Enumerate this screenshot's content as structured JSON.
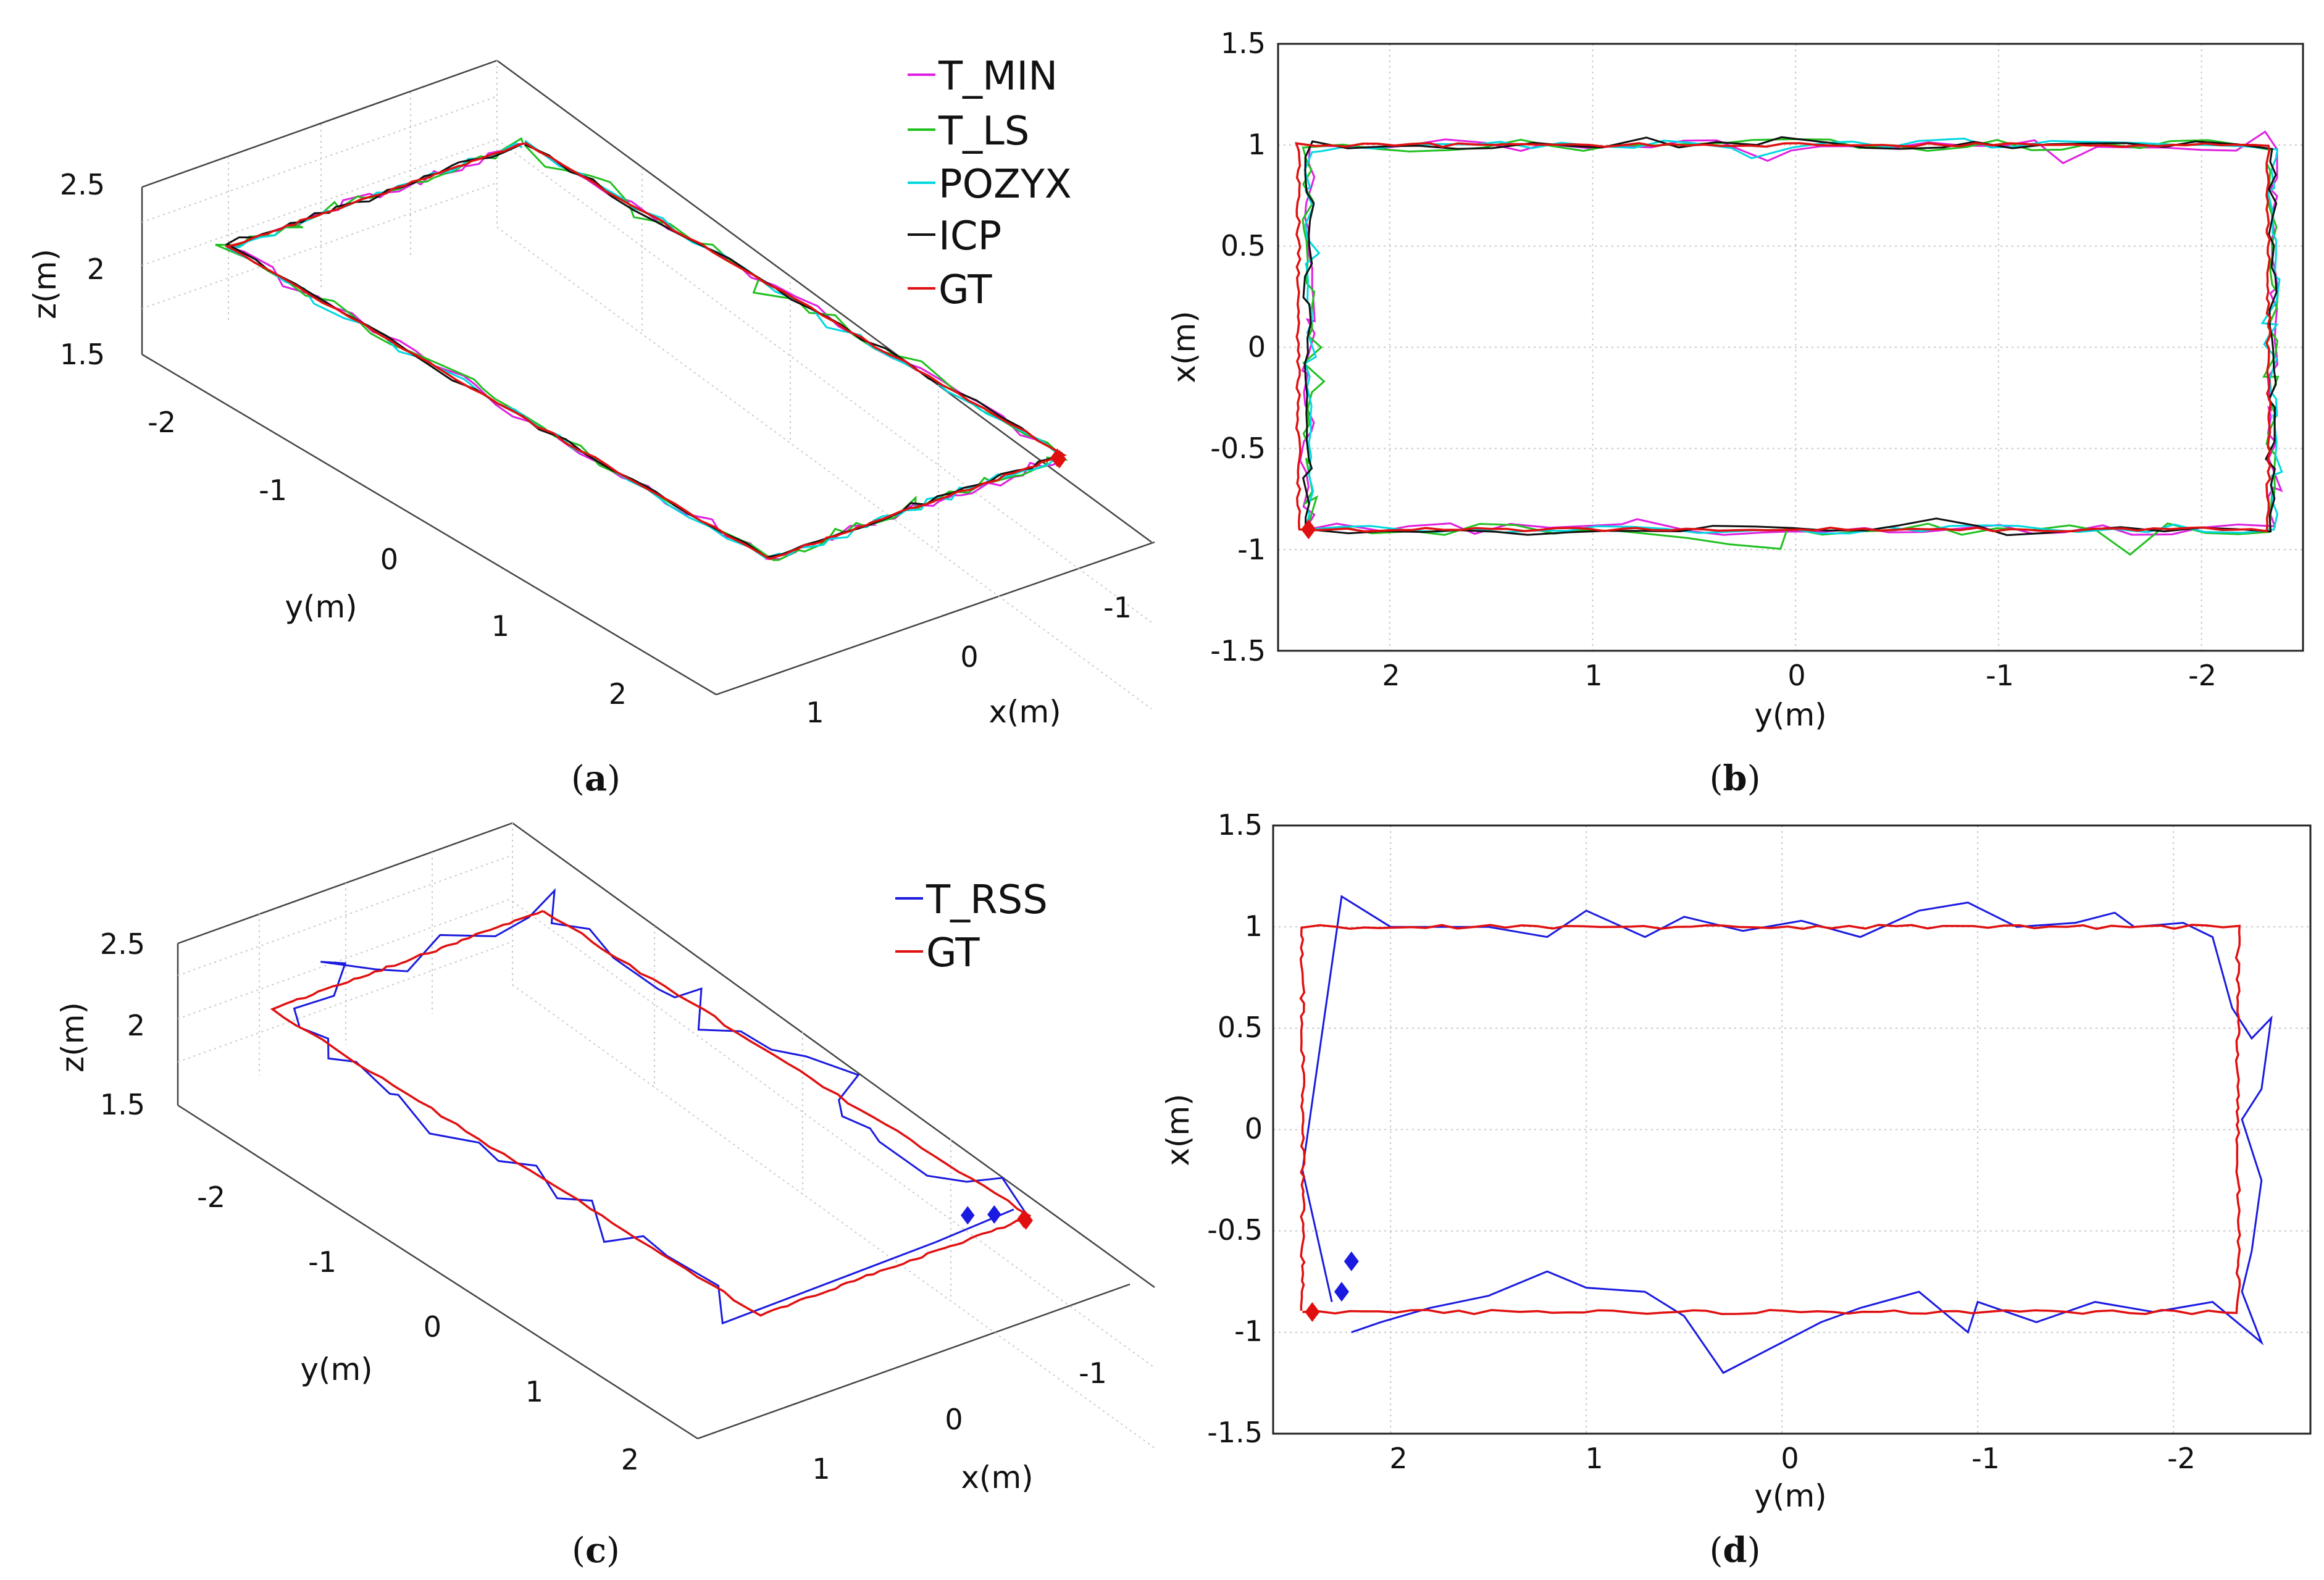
{
  "colors": {
    "T_MIN": "#e020e0",
    "T_LS": "#20c020",
    "POZYX": "#00d8e0",
    "ICP": "#101010",
    "GT": "#e01010",
    "T_RSS": "#1a1ae0"
  },
  "chart_data": [
    {
      "id": "a",
      "type": "line3d",
      "caption": "a",
      "zlabel": "z(m)",
      "ylabel": "y(m)",
      "xlabel": "x(m)",
      "z_ticks": [
        "1.5",
        "2",
        "2.5"
      ],
      "y_ticks": [
        "-2",
        "-1",
        "0",
        "1",
        "2"
      ],
      "x_ticks": [
        "1",
        "0",
        "-1"
      ],
      "legend": [
        "T_MIN",
        "T_LS",
        "POZYX",
        "ICP",
        "GT"
      ],
      "series_names": [
        "T_MIN",
        "T_LS",
        "POZYX",
        "ICP",
        "GT"
      ],
      "trajectory": "rectangle x∈[-0.9,1.0], y∈[-2.35,2.4], z≈2",
      "start_marker_color": "GT"
    },
    {
      "id": "b",
      "type": "line",
      "caption": "b",
      "xlabel": "y(m)",
      "ylabel": "x(m)",
      "x_ticks": [
        "2",
        "1",
        "0",
        "-1",
        "-2"
      ],
      "y_ticks": [
        "1.5",
        "1",
        "0.5",
        "0",
        "-0.5",
        "-1",
        "-1.5"
      ],
      "xlim": [
        2.55,
        -2.5
      ],
      "ylim": [
        -1.5,
        1.5
      ],
      "x_reversed": true,
      "grid": true,
      "series_names": [
        "T_MIN",
        "T_LS",
        "POZYX",
        "ICP",
        "GT"
      ],
      "rectangle": {
        "y_left": 2.4,
        "y_right": -2.35,
        "x_top": 1.0,
        "x_bottom": -0.9
      },
      "start_marker": {
        "y": 2.4,
        "x": -0.9,
        "color": "GT"
      }
    },
    {
      "id": "c",
      "type": "line3d",
      "caption": "c",
      "zlabel": "z(m)",
      "ylabel": "y(m)",
      "xlabel": "x(m)",
      "z_ticks": [
        "1.5",
        "2",
        "2.5"
      ],
      "y_ticks": [
        "-2",
        "-1",
        "0",
        "1",
        "2"
      ],
      "x_ticks": [
        "1",
        "0",
        "-1"
      ],
      "legend": [
        "T_RSS",
        "GT"
      ],
      "series_names": [
        "T_RSS",
        "GT"
      ]
    },
    {
      "id": "d",
      "type": "line",
      "caption": "d",
      "xlabel": "y(m)",
      "ylabel": "x(m)",
      "x_ticks": [
        "2",
        "1",
        "0",
        "-1",
        "-2"
      ],
      "y_ticks": [
        "1.5",
        "1",
        "0.5",
        "0",
        "-0.5",
        "-1",
        "-1.5"
      ],
      "xlim": [
        2.6,
        -2.7
      ],
      "ylim": [
        -1.5,
        1.5
      ],
      "x_reversed": true,
      "grid": true,
      "series_names": [
        "T_RSS",
        "GT"
      ],
      "rectangle": {
        "y_left": 2.4,
        "y_right": -2.35,
        "x_top": 1.0,
        "x_bottom": -0.9
      },
      "t_rss_points": [
        [
          2.3,
          -0.85
        ],
        [
          2.45,
          -0.2
        ],
        [
          2.25,
          1.15
        ],
        [
          2.0,
          1.0
        ],
        [
          1.5,
          1.0
        ],
        [
          1.2,
          0.95
        ],
        [
          1.0,
          1.08
        ],
        [
          0.7,
          0.95
        ],
        [
          0.5,
          1.05
        ],
        [
          0.2,
          0.98
        ],
        [
          -0.1,
          1.03
        ],
        [
          -0.4,
          0.95
        ],
        [
          -0.7,
          1.08
        ],
        [
          -0.95,
          1.12
        ],
        [
          -1.2,
          1.0
        ],
        [
          -1.5,
          1.02
        ],
        [
          -1.7,
          1.07
        ],
        [
          -1.8,
          1.0
        ],
        [
          -2.05,
          1.02
        ],
        [
          -2.2,
          0.95
        ],
        [
          -2.3,
          0.6
        ],
        [
          -2.4,
          0.45
        ],
        [
          -2.5,
          0.55
        ],
        [
          -2.45,
          0.2
        ],
        [
          -2.35,
          0.05
        ],
        [
          -2.45,
          -0.25
        ],
        [
          -2.4,
          -0.6
        ],
        [
          -2.35,
          -0.8
        ],
        [
          -2.45,
          -1.05
        ],
        [
          -2.2,
          -0.85
        ],
        [
          -1.9,
          -0.9
        ],
        [
          -1.6,
          -0.85
        ],
        [
          -1.3,
          -0.95
        ],
        [
          -1.0,
          -0.85
        ],
        [
          -0.95,
          -1.0
        ],
        [
          -0.7,
          -0.8
        ],
        [
          -0.4,
          -0.88
        ],
        [
          -0.2,
          -0.95
        ],
        [
          0.0,
          -1.05
        ],
        [
          0.3,
          -1.2
        ],
        [
          0.5,
          -0.92
        ],
        [
          0.7,
          -0.8
        ],
        [
          1.0,
          -0.78
        ],
        [
          1.2,
          -0.7
        ],
        [
          1.5,
          -0.82
        ],
        [
          1.8,
          -0.88
        ],
        [
          2.05,
          -0.95
        ],
        [
          2.2,
          -1.0
        ]
      ],
      "markers": [
        {
          "y": 2.4,
          "x": -0.9,
          "color": "GT"
        },
        {
          "y": 2.25,
          "x": -0.8,
          "color": "T_RSS"
        },
        {
          "y": 2.2,
          "x": -0.65,
          "color": "T_RSS"
        }
      ]
    }
  ]
}
